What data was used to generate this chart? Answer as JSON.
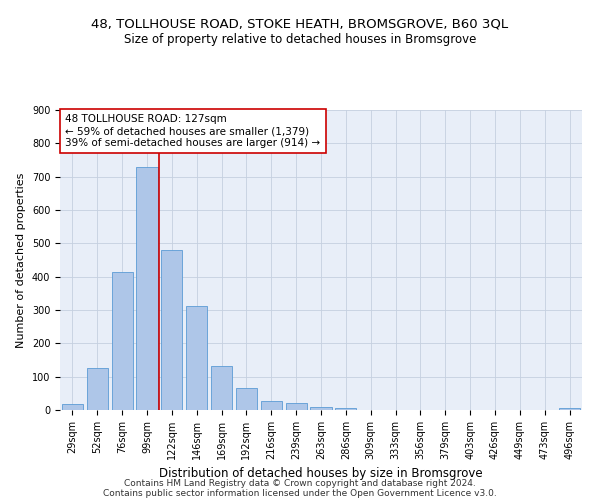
{
  "title1": "48, TOLLHOUSE ROAD, STOKE HEATH, BROMSGROVE, B60 3QL",
  "title2": "Size of property relative to detached houses in Bromsgrove",
  "xlabel": "Distribution of detached houses by size in Bromsgrove",
  "ylabel": "Number of detached properties",
  "categories": [
    "29sqm",
    "52sqm",
    "76sqm",
    "99sqm",
    "122sqm",
    "146sqm",
    "169sqm",
    "192sqm",
    "216sqm",
    "239sqm",
    "263sqm",
    "286sqm",
    "309sqm",
    "333sqm",
    "356sqm",
    "379sqm",
    "403sqm",
    "426sqm",
    "449sqm",
    "473sqm",
    "496sqm"
  ],
  "values": [
    18,
    127,
    414,
    730,
    480,
    313,
    131,
    65,
    28,
    20,
    8,
    5,
    0,
    0,
    0,
    0,
    0,
    0,
    0,
    0,
    5
  ],
  "bar_color": "#aec6e8",
  "bar_edge_color": "#5b9bd5",
  "vline_color": "#cc0000",
  "annotation_line1": "48 TOLLHOUSE ROAD: 127sqm",
  "annotation_line2": "← 59% of detached houses are smaller (1,379)",
  "annotation_line3": "39% of semi-detached houses are larger (914) →",
  "annotation_box_color": "#ffffff",
  "annotation_box_edge_color": "#cc0000",
  "ylim": [
    0,
    900
  ],
  "yticks": [
    0,
    100,
    200,
    300,
    400,
    500,
    600,
    700,
    800,
    900
  ],
  "footer1": "Contains HM Land Registry data © Crown copyright and database right 2024.",
  "footer2": "Contains public sector information licensed under the Open Government Licence v3.0.",
  "plot_bg_color": "#e8eef8",
  "title1_fontsize": 9.5,
  "title2_fontsize": 8.5,
  "xlabel_fontsize": 8.5,
  "ylabel_fontsize": 8,
  "tick_fontsize": 7,
  "annot_fontsize": 7.5,
  "footer_fontsize": 6.5,
  "vline_pos": 3.5
}
